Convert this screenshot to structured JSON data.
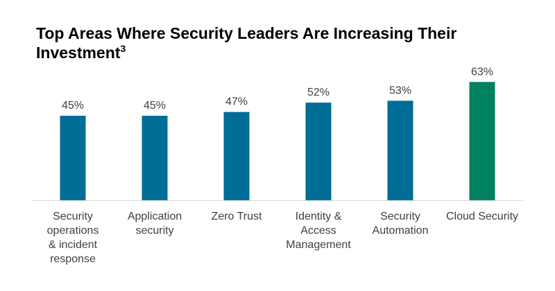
{
  "title": "Top Areas Where Security Leaders Are Increasing Their Investment",
  "title_superscript": "3",
  "chart_data": {
    "type": "bar",
    "categories": [
      [
        "Security",
        "operations",
        "& incident",
        "response"
      ],
      [
        "Application",
        "security"
      ],
      [
        "Zero Trust"
      ],
      [
        "Identity &",
        "Access",
        "Management"
      ],
      [
        "Security",
        "Automation"
      ],
      [
        "Cloud Security"
      ]
    ],
    "values": [
      45,
      45,
      47,
      52,
      53,
      63
    ],
    "value_labels": [
      "45%",
      "45%",
      "47%",
      "52%",
      "53%",
      "63%"
    ],
    "ylim": [
      0,
      70
    ],
    "grid": false,
    "legend": "none",
    "colors": {
      "default": "#006E96",
      "highlight": "#00815F",
      "baseline": "#D9D9D9"
    },
    "highlight_index": 5
  }
}
